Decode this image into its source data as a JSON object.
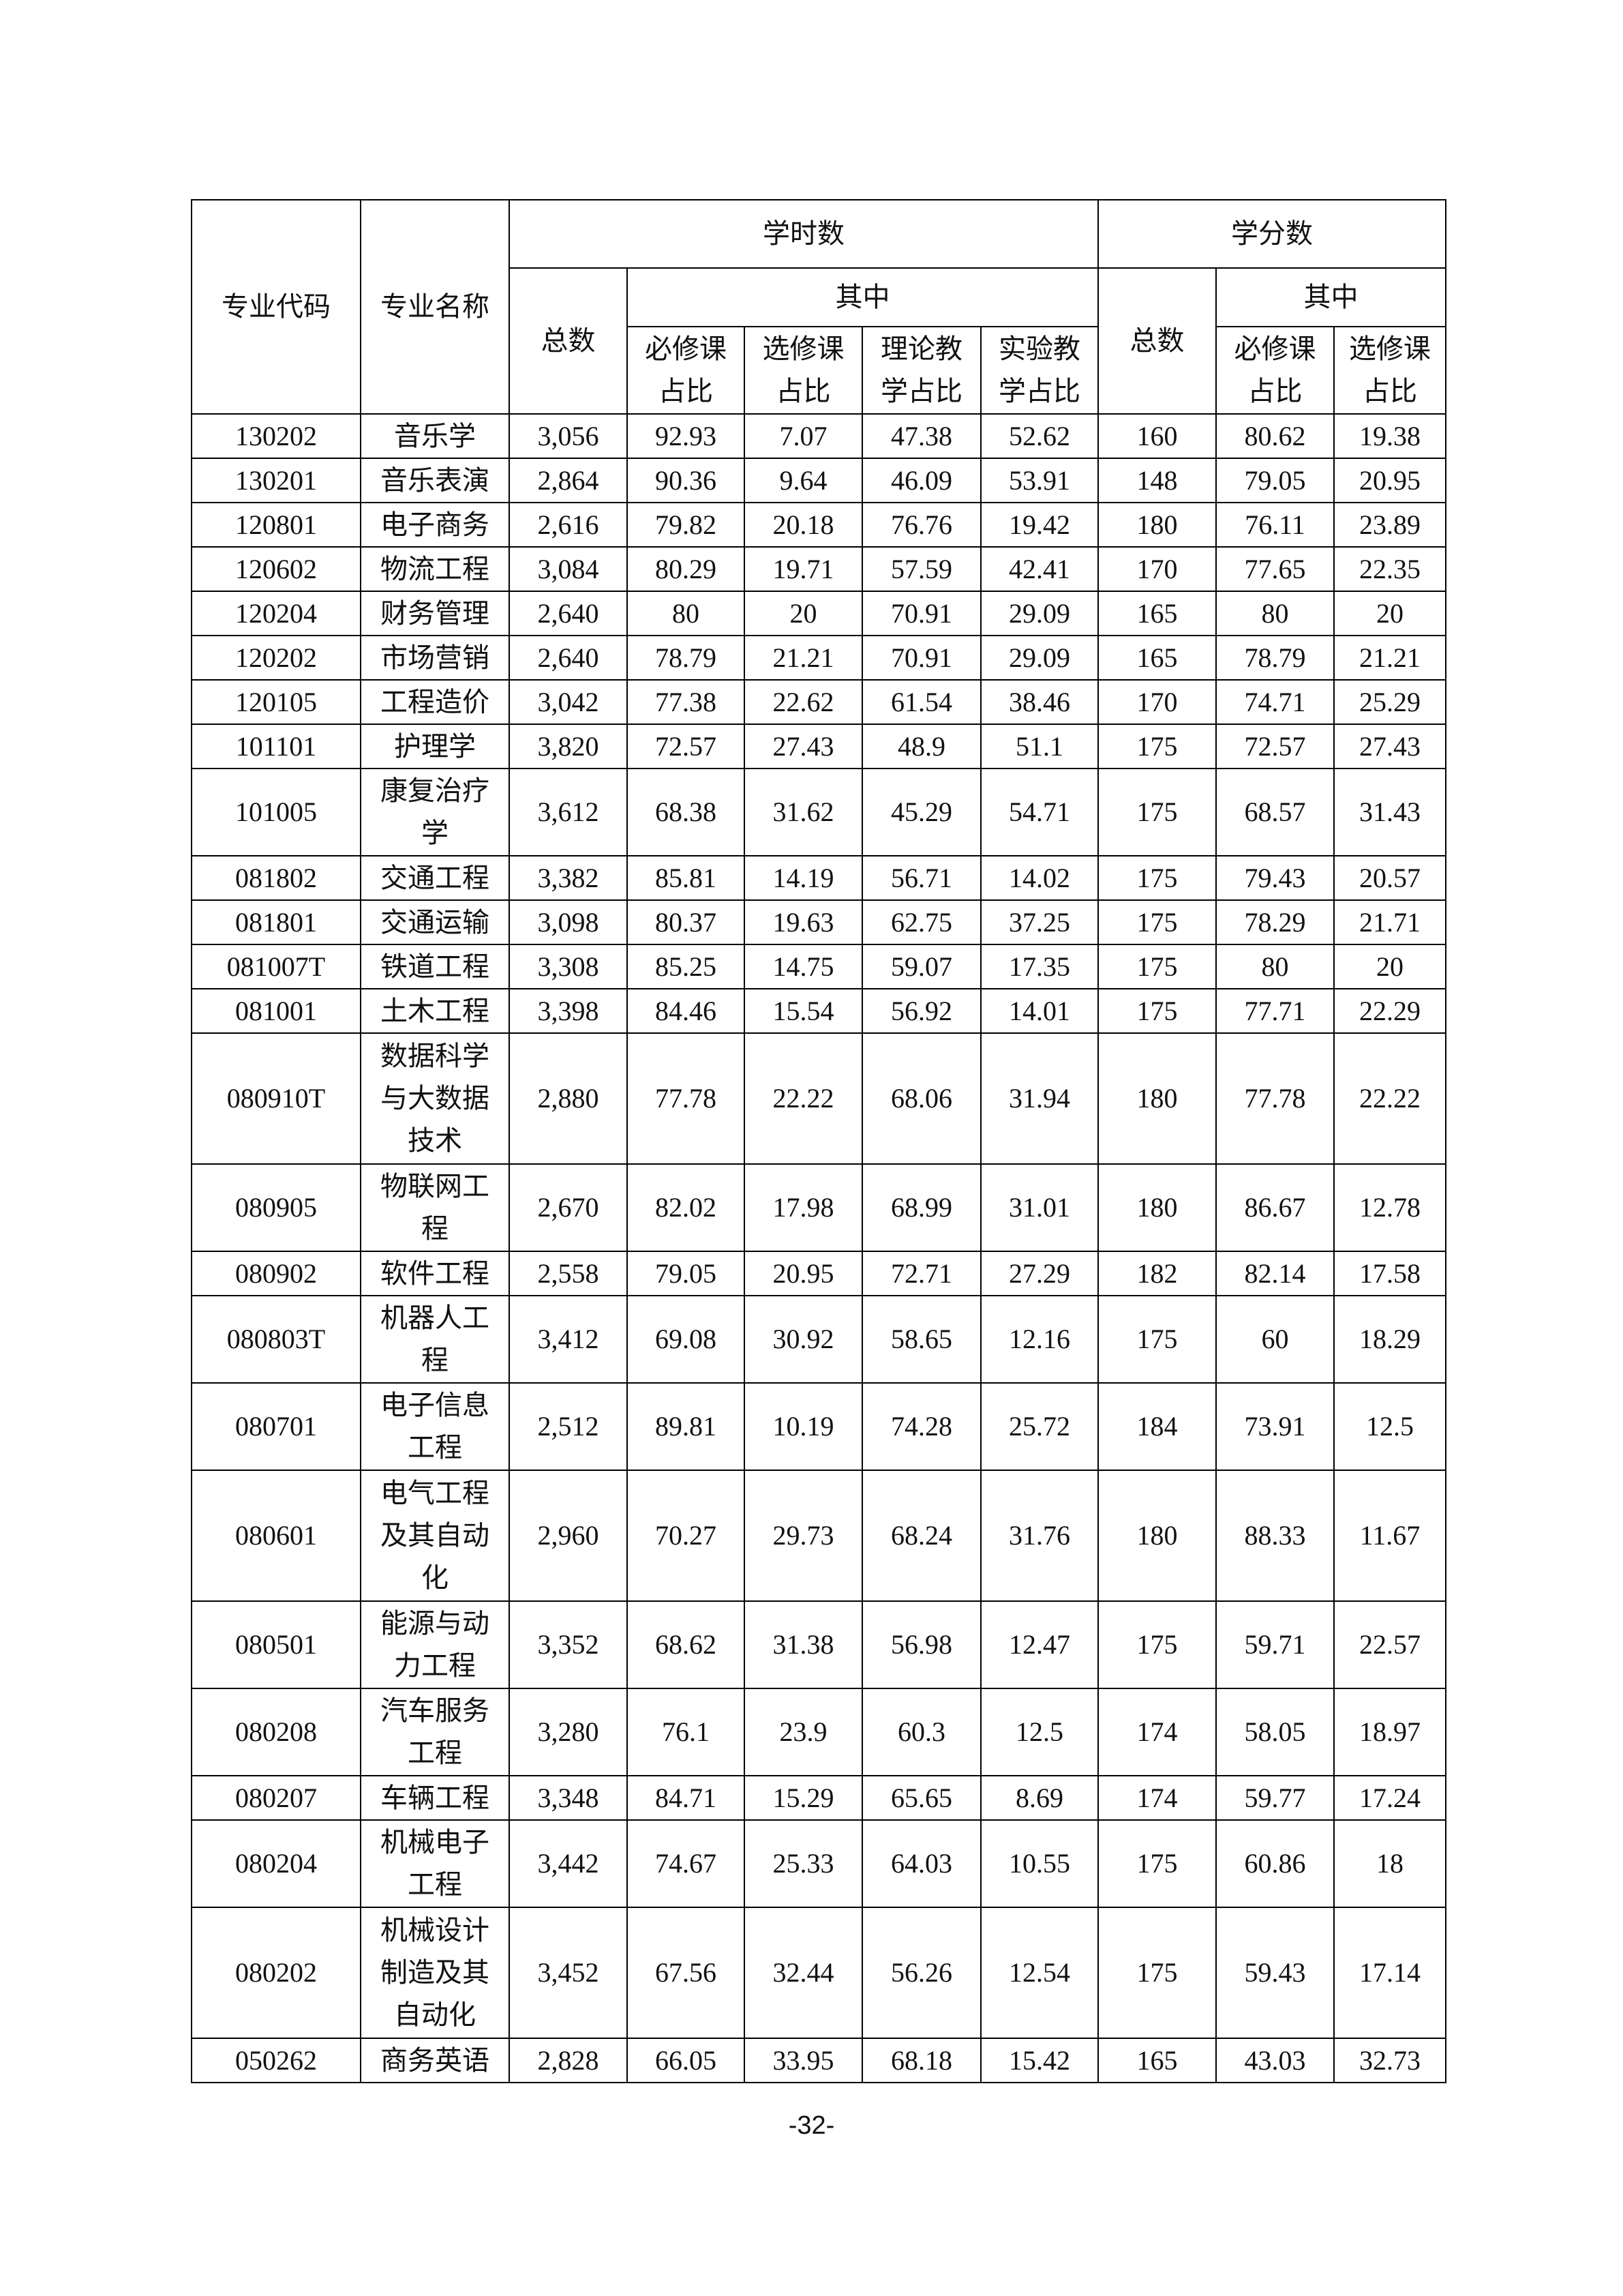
{
  "header": {
    "code": "专业代码",
    "name": "专业名称",
    "hours_group": "学时数",
    "credits_group": "学分数",
    "total": "总数",
    "of_which": "其中",
    "required_ratio": "必修课占比",
    "elective_ratio": "选修课占比",
    "theory_ratio": "理论教学占比",
    "lab_ratio": "实验教学占比"
  },
  "rows": [
    [
      "130202",
      "音乐学",
      "3,056",
      "92.93",
      "7.07",
      "47.38",
      "52.62",
      "160",
      "80.62",
      "19.38"
    ],
    [
      "130201",
      "音乐表演",
      "2,864",
      "90.36",
      "9.64",
      "46.09",
      "53.91",
      "148",
      "79.05",
      "20.95"
    ],
    [
      "120801",
      "电子商务",
      "2,616",
      "79.82",
      "20.18",
      "76.76",
      "19.42",
      "180",
      "76.11",
      "23.89"
    ],
    [
      "120602",
      "物流工程",
      "3,084",
      "80.29",
      "19.71",
      "57.59",
      "42.41",
      "170",
      "77.65",
      "22.35"
    ],
    [
      "120204",
      "财务管理",
      "2,640",
      "80",
      "20",
      "70.91",
      "29.09",
      "165",
      "80",
      "20"
    ],
    [
      "120202",
      "市场营销",
      "2,640",
      "78.79",
      "21.21",
      "70.91",
      "29.09",
      "165",
      "78.79",
      "21.21"
    ],
    [
      "120105",
      "工程造价",
      "3,042",
      "77.38",
      "22.62",
      "61.54",
      "38.46",
      "170",
      "74.71",
      "25.29"
    ],
    [
      "101101",
      "护理学",
      "3,820",
      "72.57",
      "27.43",
      "48.9",
      "51.1",
      "175",
      "72.57",
      "27.43"
    ],
    [
      "101005",
      "康复治疗学",
      "3,612",
      "68.38",
      "31.62",
      "45.29",
      "54.71",
      "175",
      "68.57",
      "31.43"
    ],
    [
      "081802",
      "交通工程",
      "3,382",
      "85.81",
      "14.19",
      "56.71",
      "14.02",
      "175",
      "79.43",
      "20.57"
    ],
    [
      "081801",
      "交通运输",
      "3,098",
      "80.37",
      "19.63",
      "62.75",
      "37.25",
      "175",
      "78.29",
      "21.71"
    ],
    [
      "081007T",
      "铁道工程",
      "3,308",
      "85.25",
      "14.75",
      "59.07",
      "17.35",
      "175",
      "80",
      "20"
    ],
    [
      "081001",
      "土木工程",
      "3,398",
      "84.46",
      "15.54",
      "56.92",
      "14.01",
      "175",
      "77.71",
      "22.29"
    ],
    [
      "080910T",
      "数据科学与大数据技术",
      "2,880",
      "77.78",
      "22.22",
      "68.06",
      "31.94",
      "180",
      "77.78",
      "22.22"
    ],
    [
      "080905",
      "物联网工程",
      "2,670",
      "82.02",
      "17.98",
      "68.99",
      "31.01",
      "180",
      "86.67",
      "12.78"
    ],
    [
      "080902",
      "软件工程",
      "2,558",
      "79.05",
      "20.95",
      "72.71",
      "27.29",
      "182",
      "82.14",
      "17.58"
    ],
    [
      "080803T",
      "机器人工程",
      "3,412",
      "69.08",
      "30.92",
      "58.65",
      "12.16",
      "175",
      "60",
      "18.29"
    ],
    [
      "080701",
      "电子信息工程",
      "2,512",
      "89.81",
      "10.19",
      "74.28",
      "25.72",
      "184",
      "73.91",
      "12.5"
    ],
    [
      "080601",
      "电气工程及其自动化",
      "2,960",
      "70.27",
      "29.73",
      "68.24",
      "31.76",
      "180",
      "88.33",
      "11.67"
    ],
    [
      "080501",
      "能源与动力工程",
      "3,352",
      "68.62",
      "31.38",
      "56.98",
      "12.47",
      "175",
      "59.71",
      "22.57"
    ],
    [
      "080208",
      "汽车服务工程",
      "3,280",
      "76.1",
      "23.9",
      "60.3",
      "12.5",
      "174",
      "58.05",
      "18.97"
    ],
    [
      "080207",
      "车辆工程",
      "3,348",
      "84.71",
      "15.29",
      "65.65",
      "8.69",
      "174",
      "59.77",
      "17.24"
    ],
    [
      "080204",
      "机械电子工程",
      "3,442",
      "74.67",
      "25.33",
      "64.03",
      "10.55",
      "175",
      "60.86",
      "18"
    ],
    [
      "080202",
      "机械设计制造及其自动化",
      "3,452",
      "67.56",
      "32.44",
      "56.26",
      "12.54",
      "175",
      "59.43",
      "17.14"
    ],
    [
      "050262",
      "商务英语",
      "2,828",
      "66.05",
      "33.95",
      "68.18",
      "15.42",
      "165",
      "43.03",
      "32.73"
    ]
  ],
  "page_number": "-32-"
}
